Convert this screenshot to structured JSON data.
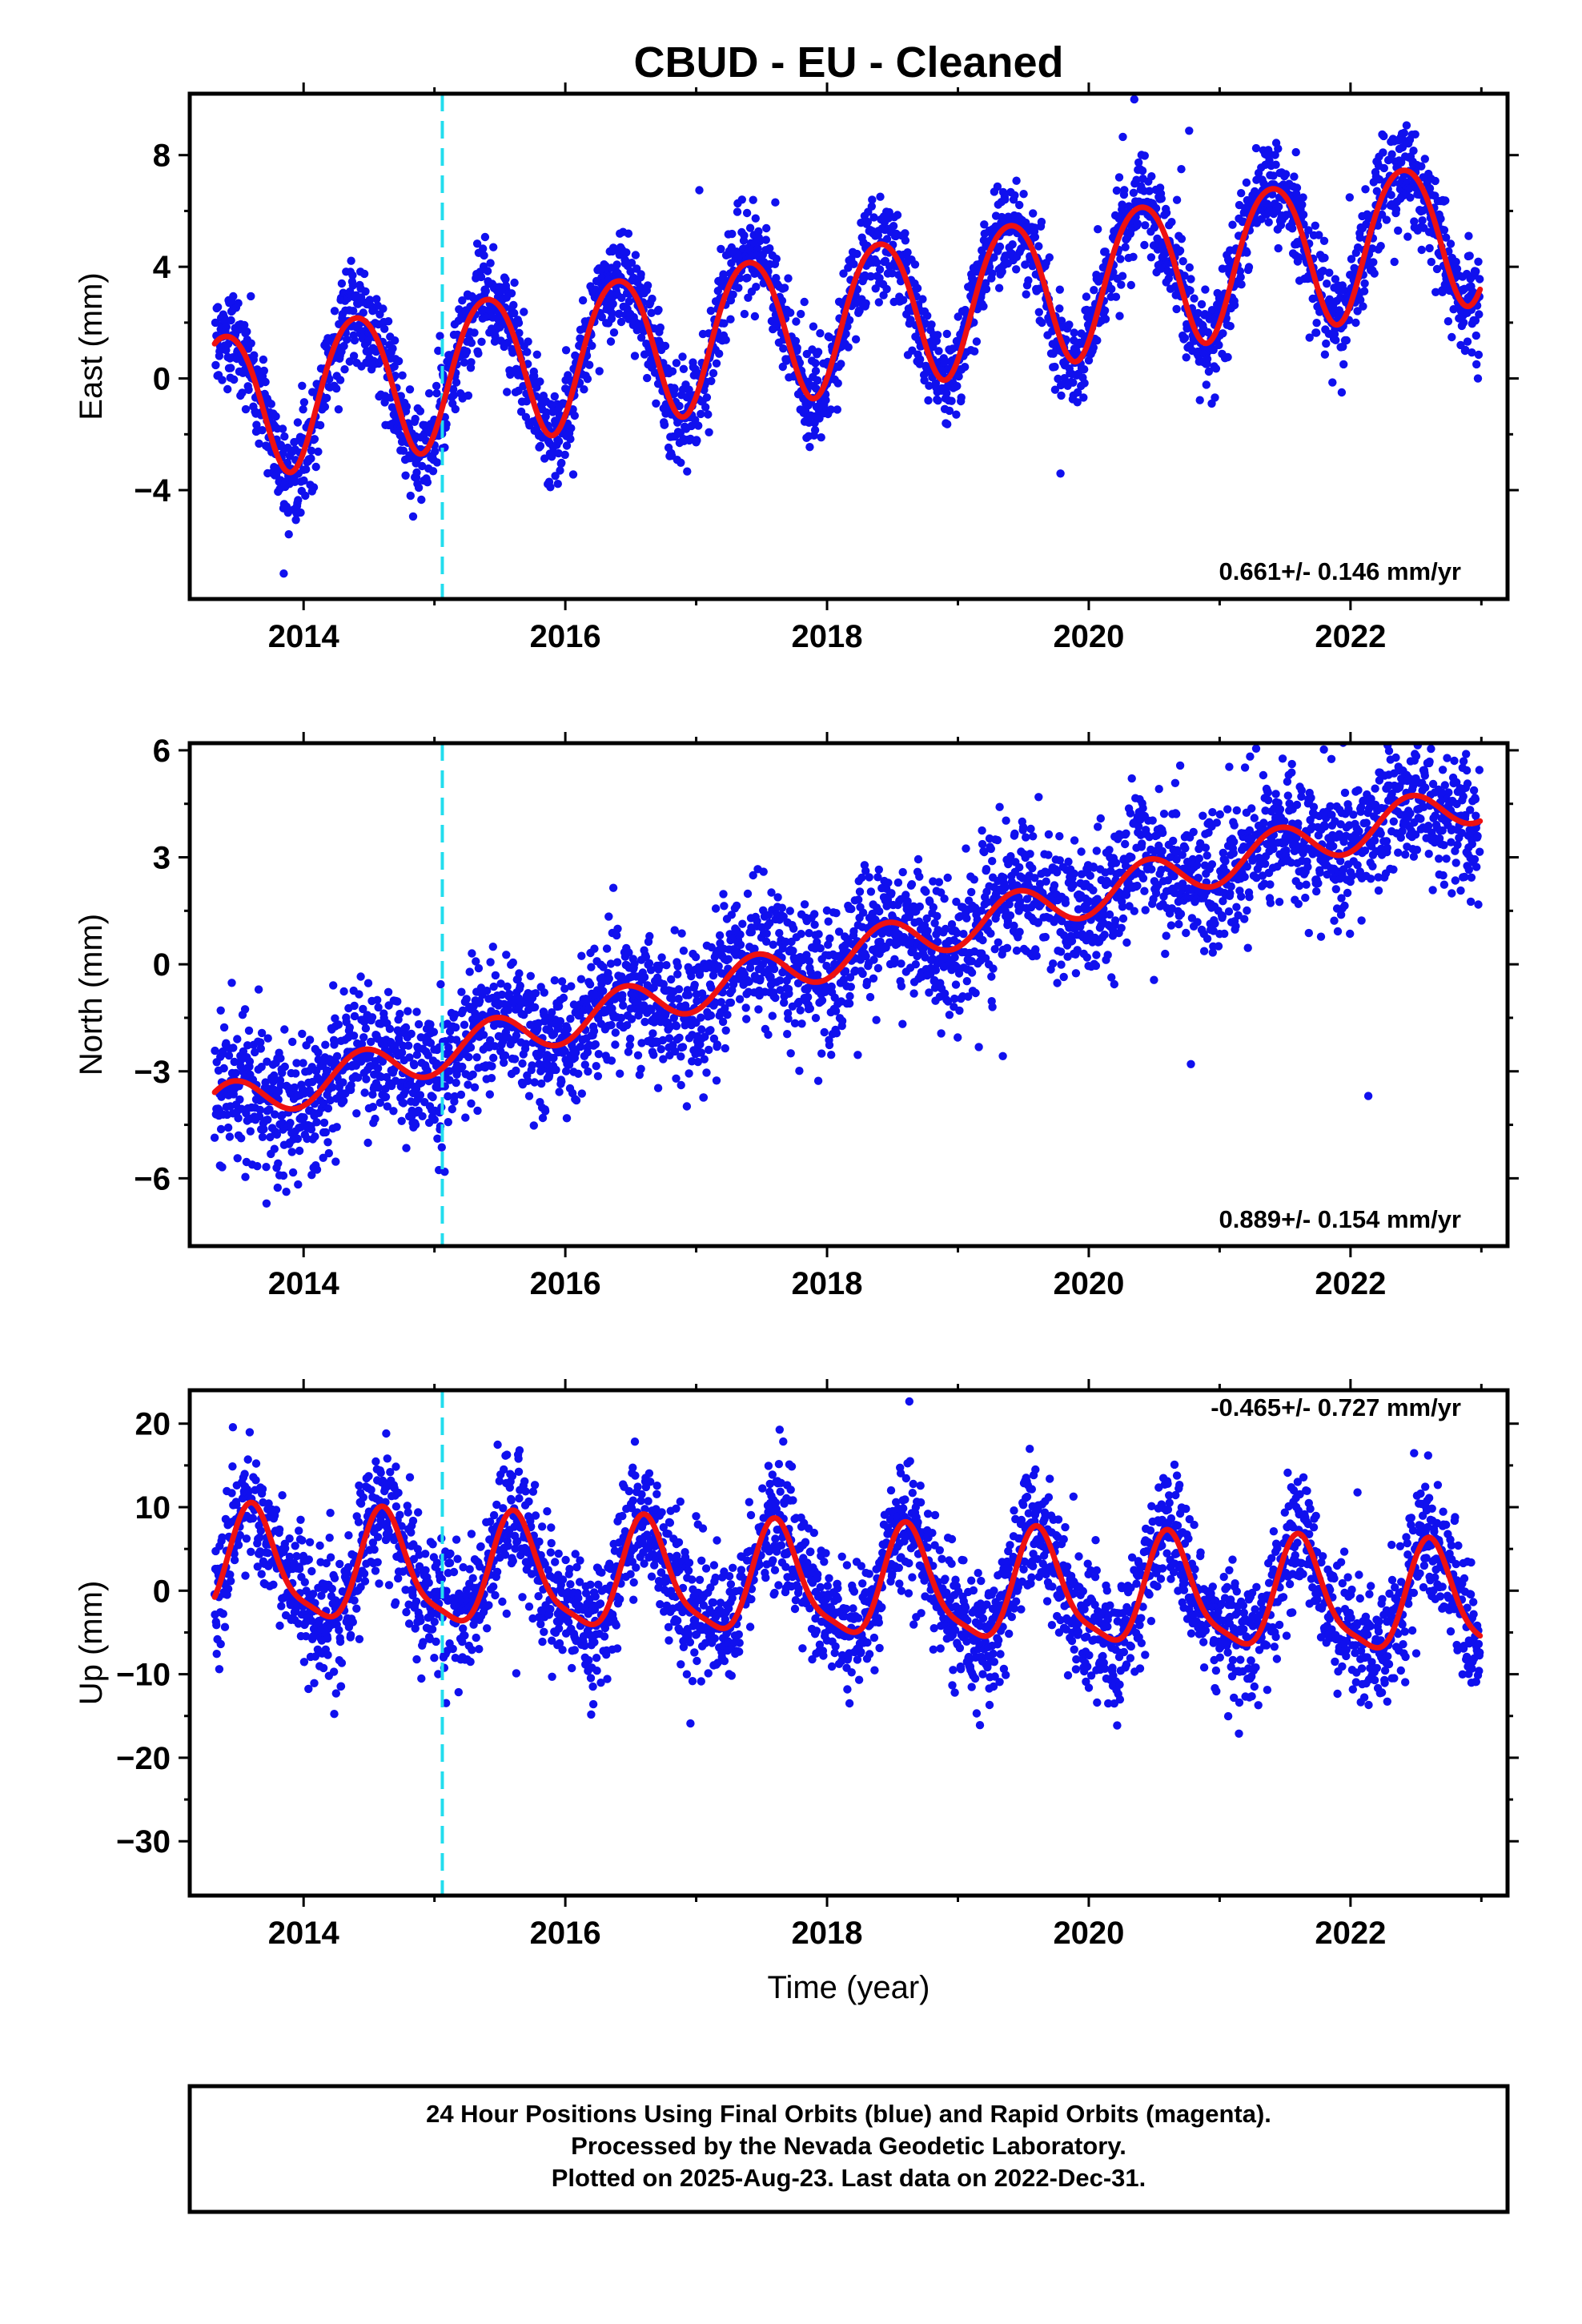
{
  "title": "CBUD  - EU - Cleaned",
  "xlabel": "Time (year)",
  "notes": [
    "24 Hour Positions Using Final Orbits (blue) and Rapid Orbits (magenta).",
    "Processed by the Nevada Geodetic Laboratory.",
    "Plotted on 2025-Aug-23. Last data on 2022-Dec-31."
  ],
  "colors": {
    "points": "#1010ee",
    "model": "#ee1111",
    "break_line": "#22ddee",
    "frame": "#000000"
  },
  "chart_data": [
    {
      "type": "scatter",
      "component": "east",
      "ylabel": "East (mm)",
      "rate_label": "0.661+/- 0.146 mm/yr",
      "xlim": [
        2013.13,
        2023.2
      ],
      "ylim": [
        -7.9,
        10.2
      ],
      "yticks": [
        -4,
        0,
        4,
        8
      ],
      "xticks": [
        2014,
        2016,
        2018,
        2020,
        2022
      ],
      "time_span": [
        2013.32,
        2022.99
      ],
      "break_epoch": 2015.06,
      "model": {
        "offset": -0.9,
        "rate": 0.661,
        "annual_amp": 2.6,
        "annual_peak": 2013.4,
        "semiannual_amp": 0.25,
        "semiannual_peak": 2013.15,
        "scatter": 0.9
      },
      "series": [
        {
          "name": "Final Orbits",
          "color": "blue"
        },
        {
          "name": "Rapid Orbits",
          "color": "magenta"
        }
      ]
    },
    {
      "type": "scatter",
      "component": "north",
      "ylabel": "North (mm)",
      "rate_label": "0.889+/- 0.154 mm/yr",
      "xlim": [
        2013.13,
        2023.2
      ],
      "ylim": [
        -7.9,
        6.2
      ],
      "yticks": [
        -6,
        -3,
        0,
        3,
        6
      ],
      "xticks": [
        2014,
        2016,
        2018,
        2020,
        2022
      ],
      "time_span": [
        2013.32,
        2022.99
      ],
      "break_epoch": 2015.06,
      "model": {
        "offset": -4.0,
        "rate": 0.889,
        "annual_amp": 0.6,
        "annual_peak": 2013.45,
        "semiannual_amp": 0.0,
        "semiannual_peak": 2013.2,
        "scatter": 0.95
      },
      "series": [
        {
          "name": "Final Orbits",
          "color": "blue"
        },
        {
          "name": "Rapid Orbits",
          "color": "magenta"
        }
      ]
    },
    {
      "type": "scatter",
      "component": "up",
      "ylabel": "Up (mm)",
      "rate_label": "-0.465+/- 0.727 mm/yr",
      "xlim": [
        2013.13,
        2023.2
      ],
      "ylim": [
        -36.5,
        24.0
      ],
      "yticks": [
        -30,
        -20,
        -10,
        0,
        10,
        20
      ],
      "xticks": [
        2014,
        2016,
        2018,
        2020,
        2022
      ],
      "time_span": [
        2013.32,
        2022.99
      ],
      "break_epoch": 2015.06,
      "model": {
        "offset": 2.8,
        "rate": -0.465,
        "annual_amp": 6.4,
        "annual_peak": 2013.62,
        "semiannual_amp": 1.6,
        "semiannual_peak": 2013.58,
        "scatter": 3.8
      },
      "series": [
        {
          "name": "Final Orbits",
          "color": "blue"
        },
        {
          "name": "Rapid Orbits",
          "color": "magenta"
        }
      ]
    }
  ]
}
